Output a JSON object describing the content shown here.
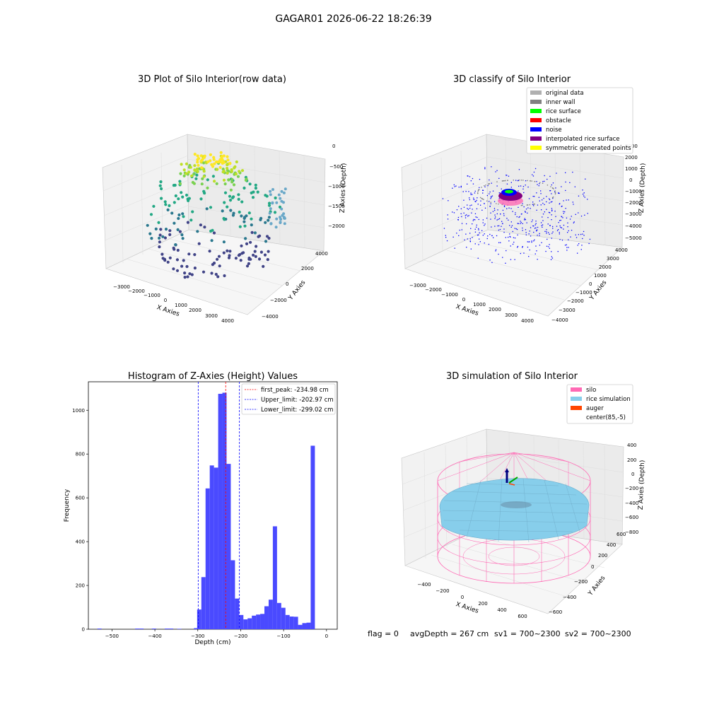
{
  "figure": {
    "suptitle": "GAGAR01 2026-06-22 18:26:39"
  },
  "colors": {
    "original_data": "#b0b0b0",
    "inner_wall": "#808080",
    "rice_surface": "#00ff00",
    "obstacle": "#ff0000",
    "noise": "#0000ff",
    "interpolated": "#800080",
    "symmetric": "#ffff00",
    "hist_bar": "#4a4aff",
    "first_peak": "#ff0000",
    "limits": "#0000ff",
    "silo": "#ff69b4",
    "rice_sim": "#87ceeb",
    "auger": "#ff4500",
    "pane": "#f2f2f2",
    "grid": "#dcdcdc"
  },
  "chart_data": [
    {
      "type": "scatter",
      "title": "3D Plot of Silo Interior(row data)",
      "xlabel": "X Axies",
      "ylabel": "Y Axies",
      "zlabel": "Z Axies (Depth)",
      "x_ticks": [
        "−3000",
        "−2000",
        "−1000",
        "0",
        "1000",
        "2000",
        "3000",
        "4000"
      ],
      "y_ticks": [
        "−4000",
        "−2000",
        "0",
        "2000",
        "4000"
      ],
      "z_ticks": [
        "0",
        "−500",
        "−1000",
        "−1500",
        "−2000"
      ]
    },
    {
      "type": "scatter",
      "title": "3D classify of Silo Interior",
      "xlabel": "X Axies",
      "ylabel": "Y Axies",
      "zlabel": "Z Axies (Depth)",
      "x_ticks": [
        "−3000",
        "−2000",
        "−1000",
        "0",
        "1000",
        "2000",
        "3000",
        "4000"
      ],
      "y_ticks": [
        "−4000",
        "−3000",
        "−2000",
        "−1000",
        "0",
        "1000",
        "2000",
        "3000",
        "4000"
      ],
      "z_ticks": [
        "3000",
        "2000",
        "1000",
        "0",
        "−1000",
        "−2000",
        "−3000",
        "−4000",
        "−5000"
      ],
      "legend": [
        "original data",
        "inner wall",
        "rice surface",
        "obstacle",
        "noise",
        "interpolated rice surface",
        "symmetric generated points"
      ]
    },
    {
      "type": "bar",
      "title": "Histogram of Z-Axies (Height) Values",
      "xlabel": "Depth (cm)",
      "ylabel": "Frequency",
      "xlim": [
        -555,
        25
      ],
      "ylim": [
        0,
        1130
      ],
      "x_ticks": [
        -500,
        -400,
        -300,
        -200,
        -100,
        0
      ],
      "x_tick_labels": [
        "−500",
        "−400",
        "−300",
        "−200",
        "−100",
        "0"
      ],
      "y_ticks": [
        0,
        200,
        400,
        600,
        800,
        1000
      ],
      "y_tick_labels": [
        "0",
        "200",
        "400",
        "600",
        "800",
        "1000"
      ],
      "bin_width": 9.8,
      "bins": [
        {
          "x0": -534,
          "count": 3
        },
        {
          "x0": -446,
          "count": 3
        },
        {
          "x0": -436,
          "count": 3
        },
        {
          "x0": -407,
          "count": 3
        },
        {
          "x0": -377,
          "count": 3
        },
        {
          "x0": -367,
          "count": 3
        },
        {
          "x0": -348,
          "count": 2
        },
        {
          "x0": -309,
          "count": 5
        },
        {
          "x0": -301.5,
          "count": 90
        },
        {
          "x0": -291.7,
          "count": 238
        },
        {
          "x0": -281.9,
          "count": 643
        },
        {
          "x0": -272.1,
          "count": 748
        },
        {
          "x0": -262.3,
          "count": 738
        },
        {
          "x0": -252.5,
          "count": 1075
        },
        {
          "x0": -242.7,
          "count": 1080
        },
        {
          "x0": -232.9,
          "count": 755
        },
        {
          "x0": -223.1,
          "count": 315
        },
        {
          "x0": -213.3,
          "count": 140
        },
        {
          "x0": -203.5,
          "count": 65
        },
        {
          "x0": -193.7,
          "count": 45
        },
        {
          "x0": -183.9,
          "count": 50
        },
        {
          "x0": -174.1,
          "count": 62
        },
        {
          "x0": -164.3,
          "count": 67
        },
        {
          "x0": -154.5,
          "count": 70
        },
        {
          "x0": -144.7,
          "count": 105
        },
        {
          "x0": -134.9,
          "count": 135
        },
        {
          "x0": -125.1,
          "count": 470
        },
        {
          "x0": -115.3,
          "count": 120
        },
        {
          "x0": -105.5,
          "count": 98
        },
        {
          "x0": -95.7,
          "count": 65
        },
        {
          "x0": -85.9,
          "count": 58
        },
        {
          "x0": -76.1,
          "count": 57
        },
        {
          "x0": -66.3,
          "count": 20
        },
        {
          "x0": -56.5,
          "count": 28
        },
        {
          "x0": -46.7,
          "count": 30
        },
        {
          "x0": -36.9,
          "count": 838
        }
      ],
      "vlines": [
        {
          "name": "first_peak",
          "x": -234.98,
          "label": "first_peak: -234.98 cm"
        },
        {
          "name": "upper_limit",
          "x": -202.97,
          "label": "Upper_limit: -202.97 cm"
        },
        {
          "name": "lower_limit",
          "x": -299.02,
          "label": "Lower_limit: -299.02 cm"
        }
      ],
      "legend_position": "top-right"
    },
    {
      "type": "3d-surface",
      "title": "3D simulation of Silo Interior",
      "xlabel": "X Axies",
      "ylabel": "Y Axies",
      "zlabel": "Z Axies (Depth)",
      "x_ticks": [
        "−400",
        "−200",
        "0",
        "200",
        "400",
        "600"
      ],
      "y_ticks": [
        "−600",
        "−400",
        "−200",
        "0",
        "200",
        "400",
        "600"
      ],
      "z_ticks": [
        "400",
        "200",
        "0",
        "−200",
        "−400",
        "−600",
        "−800"
      ],
      "legend": [
        "silo",
        "rice simulation",
        "auger",
        "center(85,-5)"
      ]
    }
  ],
  "status_line": {
    "flag": "flag = 0",
    "avg_depth": "avgDepth = 267 cm",
    "sv1": "sv1 = 700~2300",
    "sv2": "sv2 = 700~2300"
  }
}
